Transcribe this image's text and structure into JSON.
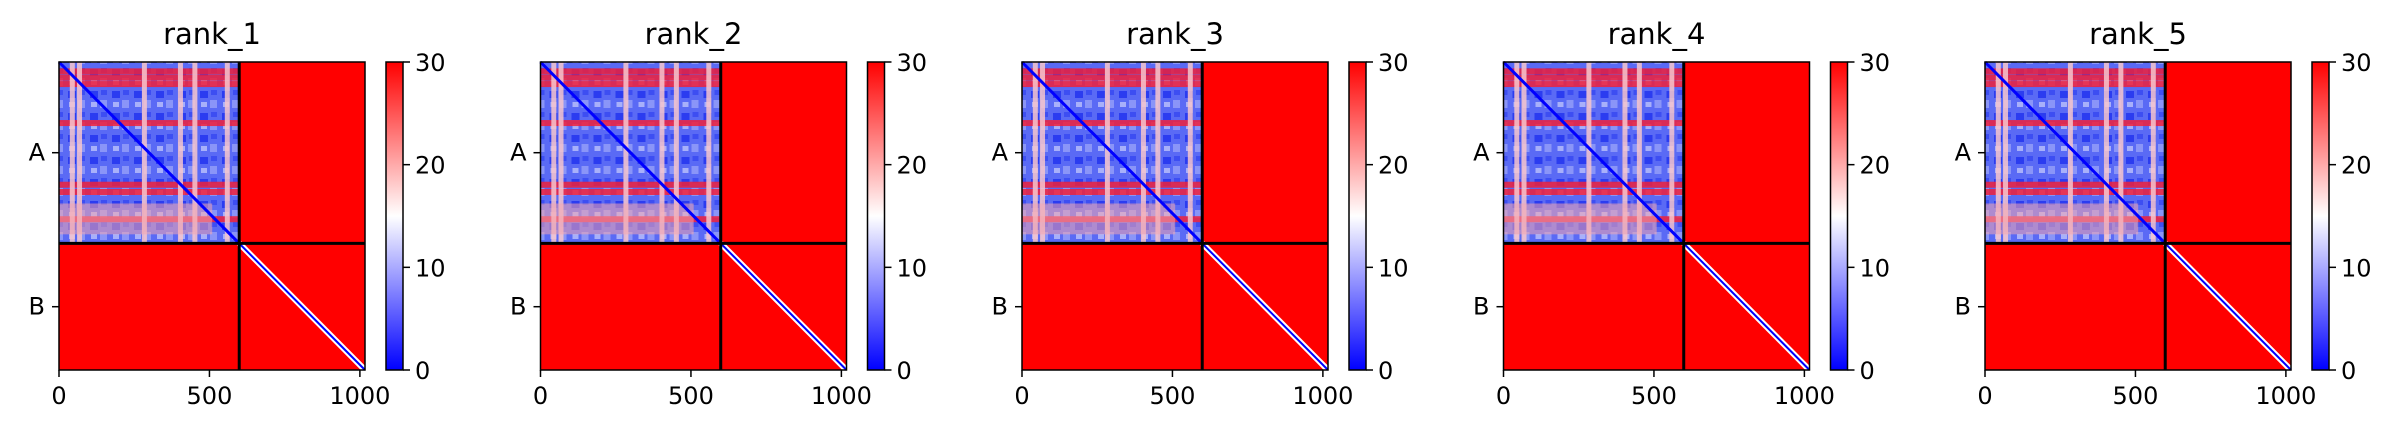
{
  "chart_data": [
    {
      "type": "heatmap",
      "title": "rank_1",
      "x_ticks": [
        0,
        500,
        1000
      ],
      "y_ticks": [
        "A",
        "B"
      ],
      "xlim": [
        0,
        1017
      ],
      "chain_break": 599,
      "colorbar": {
        "ticks": [
          0,
          10,
          20,
          30
        ],
        "range": [
          0,
          30
        ],
        "colors": [
          "#0000ff",
          "#ffffff",
          "#ff0000"
        ]
      }
    },
    {
      "type": "heatmap",
      "title": "rank_2",
      "x_ticks": [
        0,
        500,
        1000
      ],
      "y_ticks": [
        "A",
        "B"
      ],
      "xlim": [
        0,
        1017
      ],
      "chain_break": 599,
      "colorbar": {
        "ticks": [
          0,
          10,
          20,
          30
        ],
        "range": [
          0,
          30
        ],
        "colors": [
          "#0000ff",
          "#ffffff",
          "#ff0000"
        ]
      }
    },
    {
      "type": "heatmap",
      "title": "rank_3",
      "x_ticks": [
        0,
        500,
        1000
      ],
      "y_ticks": [
        "A",
        "B"
      ],
      "xlim": [
        0,
        1017
      ],
      "chain_break": 599,
      "colorbar": {
        "ticks": [
          0,
          10,
          20,
          30
        ],
        "range": [
          0,
          30
        ],
        "colors": [
          "#0000ff",
          "#ffffff",
          "#ff0000"
        ]
      }
    },
    {
      "type": "heatmap",
      "title": "rank_4",
      "x_ticks": [
        0,
        500,
        1000
      ],
      "y_ticks": [
        "A",
        "B"
      ],
      "xlim": [
        0,
        1017
      ],
      "chain_break": 599,
      "colorbar": {
        "ticks": [
          0,
          10,
          20,
          30
        ],
        "range": [
          0,
          30
        ],
        "colors": [
          "#0000ff",
          "#ffffff",
          "#ff0000"
        ]
      }
    },
    {
      "type": "heatmap",
      "title": "rank_5",
      "x_ticks": [
        0,
        500,
        1000
      ],
      "y_ticks": [
        "A",
        "B"
      ],
      "xlim": [
        0,
        1017
      ],
      "chain_break": 599,
      "colorbar": {
        "ticks": [
          0,
          10,
          20,
          30
        ],
        "range": [
          0,
          30
        ],
        "colors": [
          "#0000ff",
          "#ffffff",
          "#ff0000"
        ]
      }
    }
  ]
}
